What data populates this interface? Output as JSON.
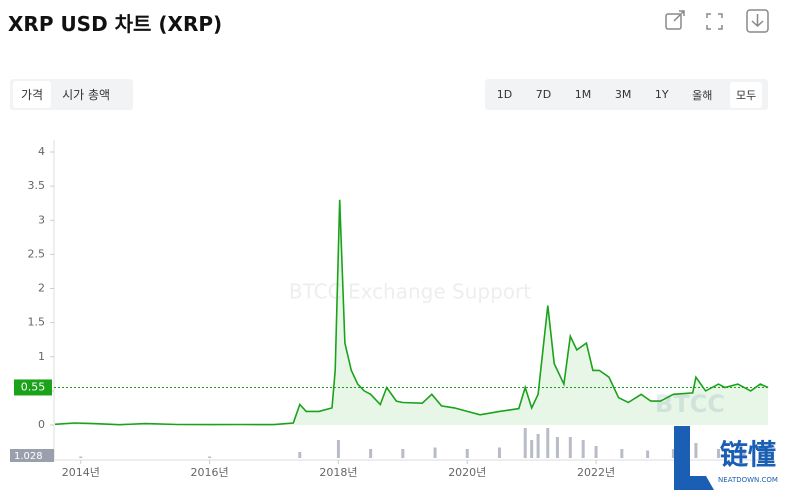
{
  "header": {
    "title": "XRP USD 차트 (XRP)"
  },
  "tabs": [
    "가격",
    "시가 총액"
  ],
  "ranges": [
    "1D",
    "7D",
    "1M",
    "3M",
    "1Y",
    "올해",
    "모두"
  ],
  "chart_data": {
    "type": "line",
    "watermark": "BTCC Exchange Support",
    "watermark_logo": "BTCC",
    "badge": {
      "title": "链懂",
      "subtitle": "NEATDOWN.COM"
    },
    "color": "#1aa31a",
    "x": [
      2013.6,
      2013.9,
      2014.2,
      2014.6,
      2015.0,
      2015.5,
      2016.0,
      2016.5,
      2017.0,
      2017.3,
      2017.4,
      2017.5,
      2017.7,
      2017.9,
      2017.95,
      2018.02,
      2018.1,
      2018.2,
      2018.3,
      2018.4,
      2018.5,
      2018.65,
      2018.75,
      2018.9,
      2019.0,
      2019.3,
      2019.45,
      2019.6,
      2019.8,
      2020.0,
      2020.2,
      2020.5,
      2020.8,
      2020.9,
      2021.0,
      2021.1,
      2021.25,
      2021.35,
      2021.5,
      2021.6,
      2021.7,
      2021.85,
      2021.95,
      2022.05,
      2022.2,
      2022.35,
      2022.5,
      2022.7,
      2022.85,
      2023.0,
      2023.2,
      2023.5,
      2023.55,
      2023.7,
      2023.9,
      2024.0,
      2024.2,
      2024.4,
      2024.55,
      2024.67
    ],
    "values": [
      0.01,
      0.03,
      0.02,
      0.005,
      0.02,
      0.008,
      0.006,
      0.007,
      0.006,
      0.03,
      0.3,
      0.2,
      0.2,
      0.25,
      0.8,
      3.3,
      1.2,
      0.8,
      0.6,
      0.5,
      0.45,
      0.3,
      0.55,
      0.35,
      0.33,
      0.32,
      0.45,
      0.28,
      0.25,
      0.2,
      0.15,
      0.2,
      0.24,
      0.55,
      0.25,
      0.45,
      1.75,
      0.9,
      0.6,
      1.3,
      1.1,
      1.2,
      0.8,
      0.8,
      0.7,
      0.4,
      0.33,
      0.45,
      0.35,
      0.35,
      0.45,
      0.47,
      0.7,
      0.5,
      0.6,
      0.55,
      0.6,
      0.5,
      0.6,
      0.55
    ],
    "last_value": 0.55,
    "xlim": [
      2013.6,
      2024.7
    ],
    "xticks": [
      {
        "value": 2014,
        "label": "2014년"
      },
      {
        "value": 2016,
        "label": "2016년"
      },
      {
        "value": 2018,
        "label": "2018년"
      },
      {
        "value": 2020,
        "label": "2020년"
      },
      {
        "value": 2022,
        "label": "2022년"
      }
    ],
    "ylim": [
      0,
      4
    ],
    "yticks": [
      0,
      0.5,
      1,
      1.5,
      2,
      2.5,
      3,
      3.5,
      4
    ],
    "volume": {
      "label": "1.028",
      "color": "#b7bcc6",
      "x": [
        2014.0,
        2016.0,
        2017.4,
        2018.0,
        2018.5,
        2019.0,
        2019.5,
        2020.0,
        2020.5,
        2020.9,
        2021.0,
        2021.1,
        2021.25,
        2021.4,
        2021.6,
        2021.8,
        2022.0,
        2022.4,
        2022.8,
        2023.2,
        2023.55,
        2023.9,
        2024.3
      ],
      "values": [
        0.05,
        0.05,
        0.2,
        0.6,
        0.3,
        0.3,
        0.35,
        0.3,
        0.35,
        1.0,
        0.6,
        0.8,
        1.0,
        0.7,
        0.7,
        0.6,
        0.4,
        0.3,
        0.25,
        0.3,
        0.5,
        0.3,
        0.3
      ],
      "ylim": [
        0,
        1
      ]
    }
  }
}
